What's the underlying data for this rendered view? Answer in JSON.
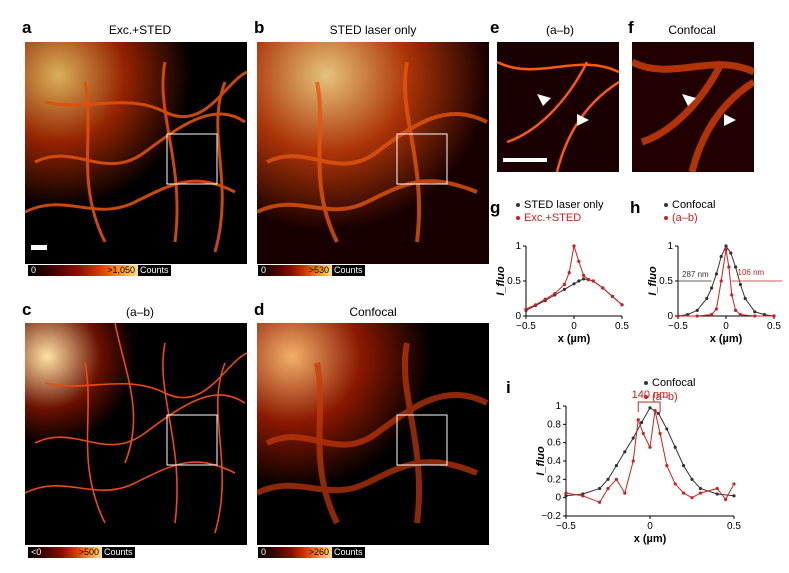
{
  "panels": {
    "a": {
      "letter": "a",
      "title": "Exc.+STED",
      "cb_min": "0",
      "cb_max": ">1,050",
      "cb_unit": "Counts"
    },
    "b": {
      "letter": "b",
      "title": "STED laser only",
      "cb_min": "0",
      "cb_max": ">530",
      "cb_unit": "Counts"
    },
    "c": {
      "letter": "c",
      "title": "(a–b)",
      "cb_min": "<0",
      "cb_max": ">500",
      "cb_unit": "Counts"
    },
    "d": {
      "letter": "d",
      "title": "Confocal",
      "cb_min": "0",
      "cb_max": ">260",
      "cb_unit": "Counts"
    },
    "e": {
      "letter": "e",
      "title": "(a–b)"
    },
    "f": {
      "letter": "f",
      "title": "Confocal"
    },
    "g": {
      "letter": "g"
    },
    "h": {
      "letter": "h"
    },
    "i": {
      "letter": "i"
    }
  },
  "colors": {
    "black_series": "#333333",
    "red_series": "#cc1f1f"
  },
  "chart_data": [
    {
      "id": "g",
      "type": "scatter",
      "xlabel": "x (µm)",
      "ylabel": "I_fluo",
      "xlim": [
        -0.5,
        0.5
      ],
      "ylim": [
        0,
        1
      ],
      "xticks": [
        "-0.5",
        "0",
        "0.5"
      ],
      "yticks": [
        "0",
        "0.5",
        "1"
      ],
      "series": [
        {
          "name": "STED laser only",
          "color": "#333333",
          "x": [
            -0.5,
            -0.4,
            -0.3,
            -0.2,
            -0.1,
            0,
            0.05,
            0.1,
            0.15,
            0.2,
            0.3,
            0.4,
            0.5
          ],
          "y": [
            0.08,
            0.15,
            0.22,
            0.3,
            0.38,
            0.46,
            0.5,
            0.53,
            0.52,
            0.5,
            0.4,
            0.28,
            0.16
          ]
        },
        {
          "name": "Exc.+STED",
          "color": "#cc1f1f",
          "x": [
            -0.5,
            -0.4,
            -0.3,
            -0.2,
            -0.1,
            -0.05,
            0,
            0.05,
            0.1,
            0.15,
            0.2,
            0.3,
            0.4,
            0.5
          ],
          "y": [
            0.1,
            0.16,
            0.24,
            0.32,
            0.45,
            0.62,
            1.0,
            0.78,
            0.58,
            0.52,
            0.5,
            0.4,
            0.28,
            0.16
          ]
        }
      ]
    },
    {
      "id": "h",
      "type": "scatter",
      "xlabel": "x (µm)",
      "ylabel": "I_fluo",
      "xlim": [
        -0.5,
        0.5
      ],
      "ylim": [
        0,
        1
      ],
      "xticks": [
        "-0.5",
        "0",
        "0.5"
      ],
      "yticks": [
        "0",
        "0.5",
        "1"
      ],
      "annotations": [
        "287 nm",
        "106 nm"
      ],
      "series": [
        {
          "name": "Confocal",
          "color": "#333333",
          "x": [
            -0.5,
            -0.4,
            -0.3,
            -0.2,
            -0.15,
            -0.1,
            -0.05,
            0,
            0.05,
            0.1,
            0.15,
            0.2,
            0.3,
            0.4,
            0.5
          ],
          "y": [
            0.0,
            0.02,
            0.08,
            0.25,
            0.4,
            0.6,
            0.85,
            1.0,
            0.9,
            0.7,
            0.45,
            0.25,
            0.06,
            0.02,
            0.0
          ]
        },
        {
          "name": "(a–b)",
          "color": "#cc1f1f",
          "x": [
            -0.5,
            -0.3,
            -0.15,
            -0.1,
            -0.05,
            0,
            0.03,
            0.06,
            0.1,
            0.15,
            0.3,
            0.5
          ],
          "y": [
            0.0,
            0.0,
            0.02,
            0.1,
            0.5,
            0.95,
            0.7,
            0.3,
            0.08,
            0.02,
            0.0,
            0.0
          ]
        }
      ]
    },
    {
      "id": "i",
      "type": "scatter",
      "xlabel": "x (µm)",
      "ylabel": "I_fluo",
      "xlim": [
        -0.5,
        0.5
      ],
      "ylim": [
        -0.2,
        1
      ],
      "xticks": [
        "-0.5",
        "0",
        "0.5"
      ],
      "yticks": [
        "-0.2",
        "0",
        "0.2",
        "0.4",
        "0.6",
        "0.8",
        "1"
      ],
      "annotations": [
        "140 nm"
      ],
      "series": [
        {
          "name": "Confocal",
          "color": "#333333",
          "x": [
            -0.5,
            -0.4,
            -0.3,
            -0.25,
            -0.2,
            -0.15,
            -0.1,
            -0.05,
            0,
            0.05,
            0.1,
            0.15,
            0.2,
            0.25,
            0.3,
            0.4,
            0.5
          ],
          "y": [
            0.02,
            0.04,
            0.1,
            0.2,
            0.35,
            0.5,
            0.65,
            0.82,
            0.98,
            0.92,
            0.75,
            0.55,
            0.35,
            0.2,
            0.1,
            0.04,
            0.02
          ]
        },
        {
          "name": "(a–b)",
          "color": "#cc1f1f",
          "x": [
            -0.5,
            -0.4,
            -0.3,
            -0.25,
            -0.2,
            -0.15,
            -0.1,
            -0.07,
            -0.04,
            0,
            0.03,
            0.06,
            0.1,
            0.15,
            0.2,
            0.25,
            0.3,
            0.4,
            0.45,
            0.5
          ],
          "y": [
            0.05,
            0.02,
            -0.05,
            0.1,
            0.2,
            0.05,
            0.4,
            0.85,
            0.7,
            0.55,
            0.95,
            0.7,
            0.35,
            0.15,
            0.05,
            0.0,
            0.05,
            0.1,
            -0.02,
            0.15
          ]
        }
      ]
    }
  ]
}
